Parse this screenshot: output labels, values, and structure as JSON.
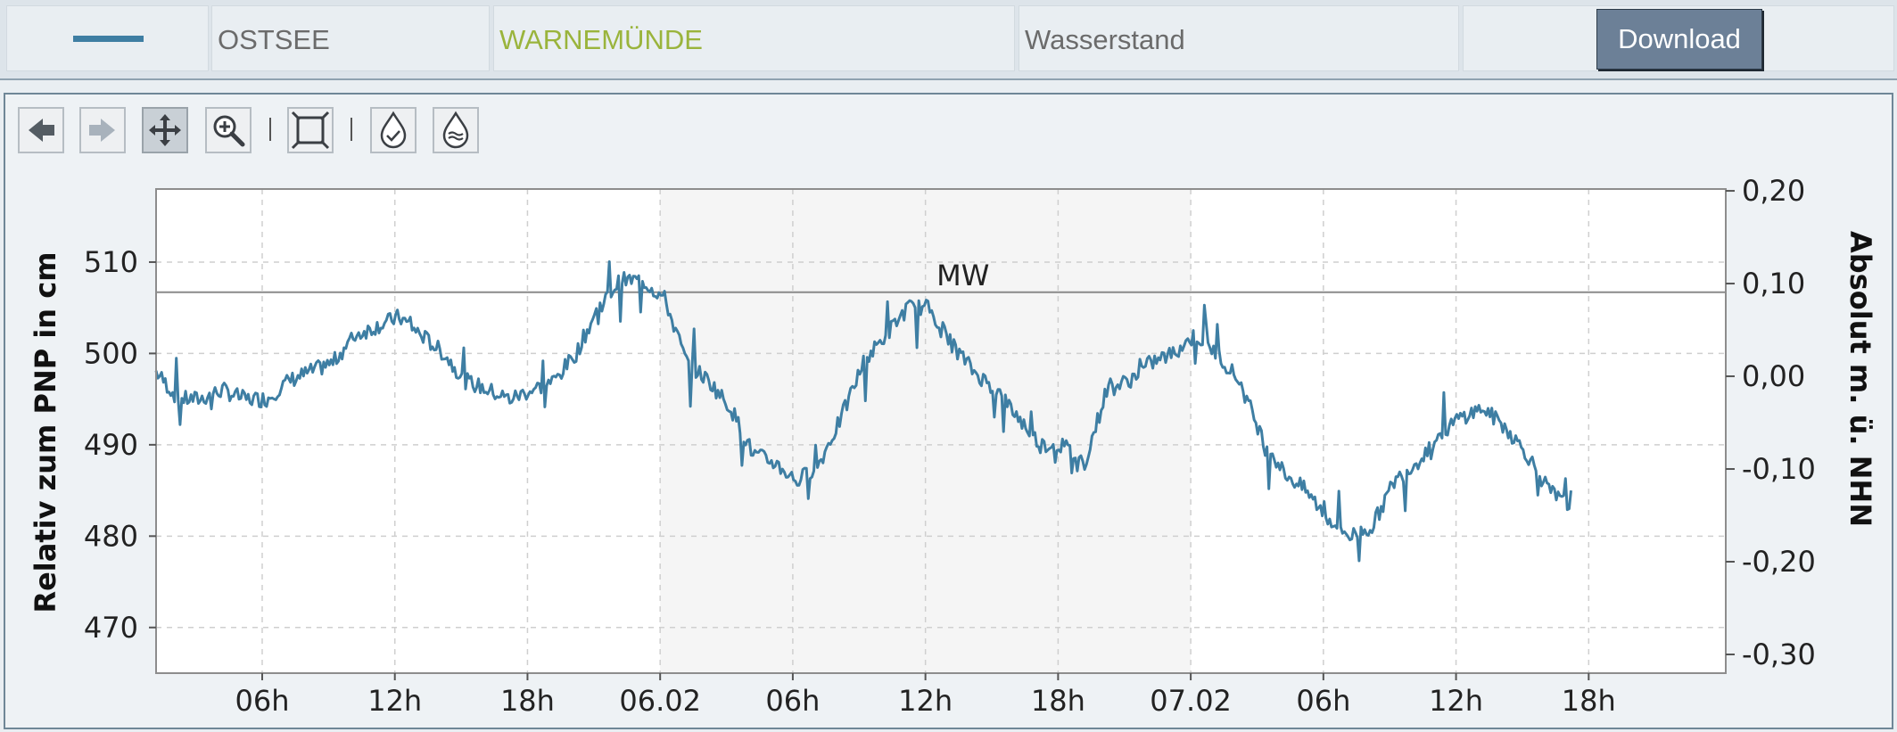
{
  "header": {
    "region": "OSTSEE",
    "station": "WARNEMÜNDE",
    "parameter": "Wasserstand",
    "download_label": "Download",
    "legend_color": "#3e7ea3",
    "station_color": "#9ab43c"
  },
  "toolbar": {
    "icons": [
      "back-arrow-icon",
      "forward-arrow-icon",
      "pan-icon",
      "zoom-icon",
      "fit-extent-icon",
      "water-drop-check-icon",
      "water-drop-waves-icon"
    ],
    "active": "pan-icon"
  },
  "chart_data": {
    "type": "line",
    "line_color": "#3e7ea3",
    "ylabel_left": "Relativ zum PNP in cm",
    "ylabel_right": "Absolut m. ü. NHN",
    "ylim_left": [
      465,
      518
    ],
    "yticks_left": [
      470,
      480,
      490,
      500,
      510
    ],
    "yticks_right": [
      "0,20",
      "0,10",
      "0,00",
      "-0,10",
      "-0,20",
      "-0,30"
    ],
    "xticks": [
      "06h",
      "12h",
      "18h",
      "06.02",
      "06h",
      "12h",
      "18h",
      "07.02",
      "06h",
      "12h",
      "18h"
    ],
    "xlim_hours": [
      1.2,
      72.2
    ],
    "xtick_hours": [
      6,
      12,
      18,
      24,
      30,
      36,
      42,
      48,
      54,
      60,
      66
    ],
    "mean_line": {
      "label": "MW",
      "value": 506.7
    },
    "shaded_range_hours": [
      24,
      48
    ],
    "grid": true,
    "series": [
      {
        "x": [
          0,
          1,
          2,
          3,
          4,
          5,
          6,
          7,
          8,
          9,
          10,
          11,
          12,
          13,
          14,
          15,
          16,
          17,
          18,
          19,
          20,
          21,
          22,
          23,
          24,
          25,
          26,
          27,
          28,
          29,
          30,
          31,
          32,
          33,
          34,
          35,
          36,
          37,
          38,
          39,
          40,
          41,
          42,
          43,
          44,
          45,
          46,
          47,
          48,
          49,
          50,
          51,
          52,
          53,
          54,
          55,
          56,
          57,
          58,
          59,
          60,
          61,
          62,
          63,
          64
        ],
        "y": [
          498,
          495,
          495,
          496,
          495,
          495,
          497,
          498,
          499,
          502,
          503,
          504,
          502,
          500,
          497,
          496,
          495,
          496,
          497,
          500,
          505,
          508,
          508,
          506,
          499,
          497,
          494,
          489,
          488,
          486,
          488,
          493,
          499,
          502,
          505,
          505,
          501,
          498,
          496,
          493,
          490,
          490,
          488,
          496,
          497,
          499,
          500,
          502,
          500,
          497,
          491,
          487,
          485,
          482,
          480,
          481,
          486,
          488,
          491,
          493,
          494,
          492,
          489,
          485,
          483
        ]
      }
    ]
  }
}
